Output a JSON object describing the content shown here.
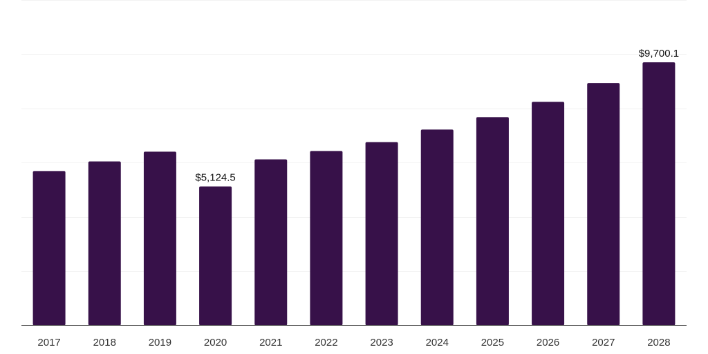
{
  "chart_data": {
    "type": "bar",
    "title": "",
    "xlabel": "",
    "ylabel": "",
    "categories": [
      "2017",
      "2018",
      "2019",
      "2020",
      "2021",
      "2022",
      "2023",
      "2024",
      "2025",
      "2026",
      "2027",
      "2028"
    ],
    "values": [
      5690,
      6045,
      6405,
      5124.5,
      6120,
      6430,
      6760,
      7220,
      7680,
      8245,
      8935,
      9700.1
    ],
    "data_labels": {
      "3": "$5,124.5",
      "11": "$9,700.1"
    },
    "ylim": [
      0,
      12000
    ],
    "ytick_step": 2000,
    "grid": true,
    "y_axis_labels_shown": false,
    "bar_color": "#371149",
    "grid_color": "#f2f2f2",
    "axis_color": "#333333"
  }
}
